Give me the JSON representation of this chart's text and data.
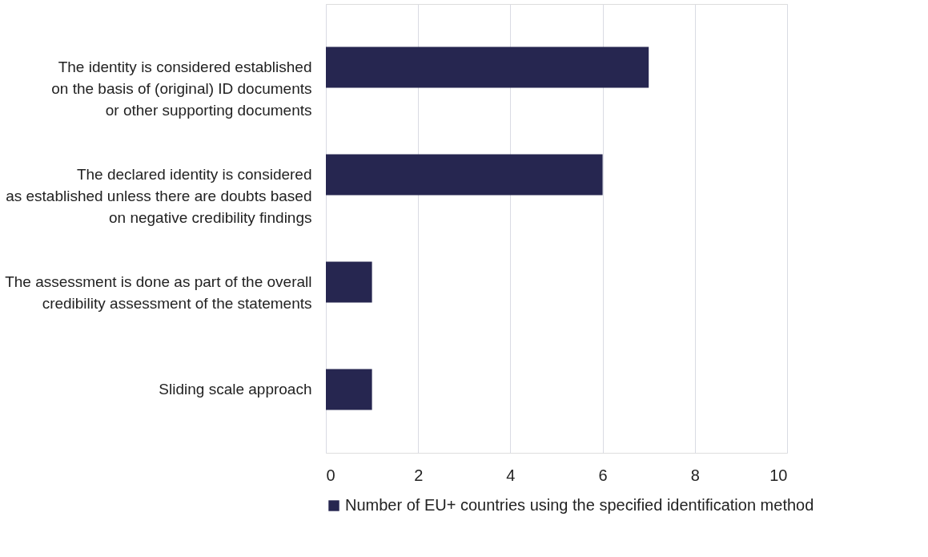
{
  "chart_data": {
    "type": "bar",
    "orientation": "horizontal",
    "categories": [
      "The identity is considered established\non the basis of (original) ID documents\nor other supporting documents",
      "The declared identity is considered\nas established unless there are doubts based\non negative credibility findings",
      "The assessment is done as part of the overall\ncredibility assessment of the statements",
      "Sliding scale approach"
    ],
    "series": [
      {
        "name": "Number of EU+ countries using the specified identification method",
        "color": "#262650",
        "values": [
          7,
          6,
          1,
          1
        ]
      }
    ],
    "xlim": [
      0,
      10
    ],
    "xticks": [
      0,
      2,
      4,
      6,
      8,
      10
    ],
    "grid": "x",
    "legend": "bottom"
  }
}
